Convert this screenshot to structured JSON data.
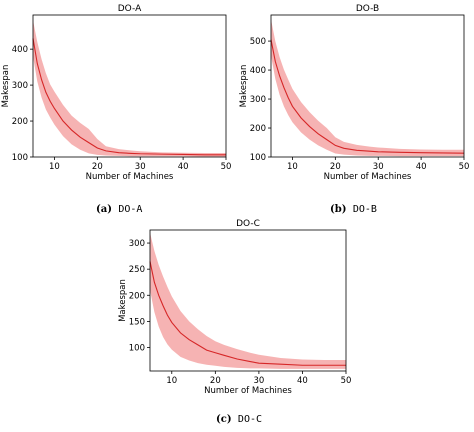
{
  "figure": {
    "captions": [
      {
        "letter": "(a)",
        "name": "DO-A"
      },
      {
        "letter": "(b)",
        "name": "DO-B"
      },
      {
        "letter": "(c)",
        "name": "DO-C"
      }
    ]
  },
  "colors": {
    "line": "#d62728",
    "band": "#f4a0a0"
  },
  "chart_data": [
    {
      "type": "line",
      "title": "DO-A",
      "xlabel": "Number of Machines",
      "ylabel": "Makespan",
      "xlim": [
        5,
        50
      ],
      "ylim": [
        100,
        495
      ],
      "xticks": [
        10,
        20,
        30,
        40,
        50
      ],
      "yticks": [
        100,
        200,
        300,
        400
      ],
      "grid": false,
      "x": [
        5,
        6,
        7,
        8,
        9,
        10,
        12,
        14,
        16,
        18,
        20,
        22,
        25,
        28,
        30,
        35,
        40,
        45,
        50
      ],
      "mean": [
        430,
        360,
        315,
        280,
        255,
        235,
        200,
        175,
        155,
        140,
        125,
        117,
        112,
        110,
        109,
        108,
        107,
        106,
        106
      ],
      "lower": [
        380,
        310,
        265,
        232,
        210,
        190,
        158,
        135,
        120,
        110,
        106,
        104,
        103,
        102,
        102,
        102,
        102,
        101,
        101
      ],
      "upper": [
        480,
        420,
        372,
        333,
        302,
        282,
        245,
        215,
        195,
        178,
        150,
        130,
        122,
        118,
        116,
        113,
        112,
        111,
        111
      ]
    },
    {
      "type": "line",
      "title": "DO-B",
      "xlabel": "Number of Machines",
      "ylabel": "Makespan",
      "xlim": [
        5,
        50
      ],
      "ylim": [
        100,
        590
      ],
      "xticks": [
        10,
        20,
        30,
        40,
        50
      ],
      "yticks": [
        100,
        200,
        300,
        400,
        500
      ],
      "grid": false,
      "x": [
        5,
        6,
        7,
        8,
        9,
        10,
        12,
        14,
        16,
        18,
        20,
        22,
        25,
        28,
        30,
        35,
        40,
        45,
        50
      ],
      "mean": [
        505,
        430,
        380,
        340,
        305,
        275,
        235,
        205,
        180,
        160,
        140,
        130,
        123,
        120,
        118,
        116,
        115,
        114,
        113
      ],
      "lower": [
        450,
        370,
        315,
        275,
        245,
        220,
        185,
        160,
        140,
        125,
        112,
        108,
        105,
        104,
        104,
        103,
        103,
        103,
        103
      ],
      "upper": [
        575,
        500,
        445,
        402,
        368,
        335,
        290,
        255,
        225,
        200,
        168,
        152,
        142,
        136,
        133,
        128,
        126,
        125,
        125
      ]
    },
    {
      "type": "line",
      "title": "DO-C",
      "xlabel": "Number of Machines",
      "ylabel": "Makespan",
      "xlim": [
        5,
        50
      ],
      "ylim": [
        55,
        325
      ],
      "xticks": [
        10,
        20,
        30,
        40,
        50
      ],
      "yticks": [
        100,
        150,
        200,
        250,
        300
      ],
      "grid": false,
      "x": [
        5,
        6,
        7,
        8,
        9,
        10,
        12,
        14,
        16,
        18,
        20,
        22,
        25,
        28,
        30,
        35,
        40,
        45,
        50
      ],
      "mean": [
        265,
        225,
        200,
        180,
        162,
        148,
        128,
        115,
        105,
        95,
        90,
        85,
        78,
        73,
        70,
        68,
        66,
        66,
        66
      ],
      "lower": [
        210,
        168,
        140,
        120,
        106,
        96,
        82,
        75,
        70,
        67,
        65,
        63,
        61,
        60,
        60,
        59,
        59,
        59,
        59
      ],
      "upper": [
        320,
        285,
        258,
        236,
        216,
        198,
        170,
        150,
        135,
        122,
        112,
        105,
        97,
        90,
        86,
        80,
        77,
        76,
        76
      ]
    }
  ]
}
